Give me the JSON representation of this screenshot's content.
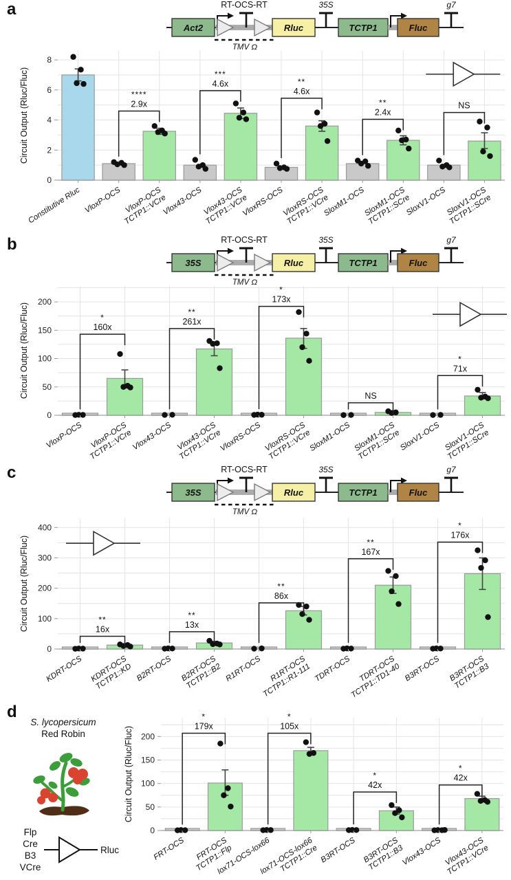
{
  "colors": {
    "bar_blue": "#A9D7EB",
    "bar_gray": "#C9C9C9",
    "bar_green": "#A5E8A6",
    "bar_border": "#9A9A9A",
    "grid": "#E4E4E4",
    "ink": "#111111",
    "construct_green": "#8CBA8C",
    "construct_yellow": "#F6EFA6",
    "construct_brown": "#B08445",
    "rt_triangle_fill": "#ECECEC",
    "rt_triangle_stroke": "#7A7A7A",
    "connector_gray": "#ABABAB",
    "plant_green": "#3B9E3B",
    "tomato_red": "#D8442F",
    "soil_brown": "#4F2D17"
  },
  "panels": {
    "a": {
      "label": "a",
      "construct": {
        "rt_label": "RT-OCS-RT",
        "promoter": "Act2",
        "reporter1": "Rluc",
        "terminator_mid": "35S",
        "promoter2": "TCTP1",
        "reporter2": "Fluc",
        "terminator_end": "g7",
        "below_label": "TMV Ω"
      }
    },
    "b": {
      "label": "b",
      "construct": {
        "rt_label": "RT-OCS-RT",
        "promoter": "35S",
        "reporter1": "Rluc",
        "terminator_mid": "35S",
        "promoter2": "TCTP1",
        "reporter2": "Fluc",
        "terminator_end": "g7",
        "below_label": "TMV Ω"
      }
    },
    "c": {
      "label": "c",
      "construct": {
        "rt_label": "RT-OCS-RT",
        "promoter": "35S",
        "reporter1": "Rluc",
        "terminator_mid": "35S",
        "promoter2": "TCTP1",
        "reporter2": "Fluc",
        "terminator_end": "g7",
        "below_label": "TMV Ω"
      }
    },
    "d": {
      "label": "d",
      "species_line1": "S. lycopersicum",
      "species_line2": "Red Robin",
      "legend": {
        "inputs": [
          "Flp",
          "Cre",
          "B3",
          "VCre"
        ],
        "output": "Rluc"
      }
    }
  },
  "chart_data": [
    {
      "panel": "a",
      "type": "bar",
      "ylabel": "Circuit Output (Rluc/Fluc)",
      "ylim": [
        0,
        8.6
      ],
      "yticks": [
        0,
        2,
        4,
        6,
        8
      ],
      "grid_step": 1,
      "icon": {
        "x_frac": 0.885,
        "y": 7.05
      },
      "categories": [
        [
          "Constitutive Rluc"
        ],
        [
          "VloxP-OCS"
        ],
        [
          "VloxP-OCS",
          "TCTP1::VCre"
        ],
        [
          "Vlox43-OCS"
        ],
        [
          "Vlox43-OCS",
          "TCTP1::VCre"
        ],
        [
          "VloxRS-OCS"
        ],
        [
          "VloxRS-OCS",
          "TCTP1::VCre"
        ],
        [
          "SloxM1-OCS"
        ],
        [
          "SloxM1-OCS",
          "TCTP1::SCre"
        ],
        [
          "SloxV1-OCS"
        ],
        [
          "SloxV1-OCS",
          "TCTP1::SCre"
        ]
      ],
      "values": [
        7.0,
        1.1,
        3.25,
        1.0,
        4.45,
        0.85,
        3.6,
        1.1,
        2.65,
        1.0,
        2.6
      ],
      "bar_colors": [
        "blue",
        "gray",
        "green",
        "gray",
        "green",
        "gray",
        "green",
        "gray",
        "green",
        "gray",
        "green"
      ],
      "points": [
        [
          8.2,
          7.35,
          6.45,
          6.4
        ],
        [
          1.2,
          1.15,
          1.05,
          1.0
        ],
        [
          3.6,
          3.3,
          3.2,
          3.1
        ],
        [
          1.35,
          1.0,
          0.9,
          0.75
        ],
        [
          5.1,
          4.5,
          4.15,
          4.05
        ],
        [
          1.1,
          0.85,
          0.8,
          0.75
        ],
        [
          4.5,
          3.75,
          3.6,
          2.6
        ],
        [
          1.3,
          1.25,
          1.1,
          0.95
        ],
        [
          3.3,
          2.7,
          2.65,
          2.1
        ],
        [
          1.3,
          1.0,
          0.9,
          0.85
        ],
        [
          3.9,
          3.5,
          1.9,
          1.6
        ]
      ],
      "errors": [
        [
          6.6,
          7.4
        ],
        null,
        [
          3.05,
          3.45
        ],
        null,
        [
          4.1,
          4.8
        ],
        null,
        [
          3.25,
          3.95
        ],
        null,
        [
          2.35,
          2.95
        ],
        null,
        [
          2.1,
          3.15
        ]
      ],
      "annotations": [
        {
          "from": 1,
          "to": 2,
          "y": 4.6,
          "label": "2.9x",
          "sig": "****"
        },
        {
          "from": 3,
          "to": 4,
          "y": 5.95,
          "label": "4.6x",
          "sig": "***"
        },
        {
          "from": 5,
          "to": 6,
          "y": 5.45,
          "label": "4.6x",
          "sig": "**"
        },
        {
          "from": 7,
          "to": 8,
          "y": 4.05,
          "label": "2.4x",
          "sig": "**"
        },
        {
          "from": 9,
          "to": 10,
          "y": 4.5,
          "label": "NS",
          "sig": ""
        }
      ]
    },
    {
      "panel": "b",
      "type": "bar",
      "ylabel": "Circuit Output (Rluc/Fluc)",
      "ylim": [
        0,
        228
      ],
      "yticks": [
        0,
        50,
        100,
        150,
        200
      ],
      "grid_step": 25,
      "icon": {
        "x_frac": 0.9,
        "y": 178
      },
      "categories": [
        [
          "VloxP-OCS"
        ],
        [
          "VloxP-OCS",
          "TCTP1::VCre"
        ],
        [
          "Vlox43-OCS"
        ],
        [
          "Vlox43-OCS",
          "TCTP1::VCre"
        ],
        [
          "VloxRS-OCS"
        ],
        [
          "VloxRS-OCS",
          "TCTP1::VCre"
        ],
        [
          "SloxM1-OCS"
        ],
        [
          "SloxM1-OCS",
          "TCTP1::SCre"
        ],
        [
          "SloxV1-OCS"
        ],
        [
          "SloxV1-OCS",
          "TCTP1::SCre"
        ]
      ],
      "values": [
        0.5,
        65,
        0.6,
        117,
        0.8,
        136,
        0.4,
        5,
        0.5,
        34
      ],
      "bar_colors": [
        "gray",
        "green",
        "gray",
        "green",
        "gray",
        "green",
        "gray",
        "green",
        "gray",
        "green"
      ],
      "points": [
        [
          0.4,
          0.6,
          0.8
        ],
        [
          108,
          52,
          50,
          49
        ],
        [
          0.5,
          0.8
        ],
        [
          131,
          127,
          126,
          83
        ],
        [
          0.6,
          0.9,
          1.1
        ],
        [
          182,
          144,
          120,
          96
        ],
        [
          0.3,
          0.5
        ],
        [
          7,
          5,
          4
        ],
        [
          0.4,
          0.6
        ],
        [
          45,
          33,
          31,
          30
        ]
      ],
      "errors": [
        null,
        [
          50,
          80
        ],
        null,
        [
          105,
          128
        ],
        null,
        [
          118,
          153
        ],
        null,
        [
          3,
          8
        ],
        null,
        [
          29,
          40
        ]
      ],
      "annotations": [
        {
          "from": 0,
          "to": 1,
          "y": 143,
          "label": "160x",
          "sig": "*"
        },
        {
          "from": 2,
          "to": 3,
          "y": 153,
          "label": "261x",
          "sig": "**"
        },
        {
          "from": 4,
          "to": 5,
          "y": 192,
          "label": "173x",
          "sig": "*"
        },
        {
          "from": 6,
          "to": 7,
          "y": 22,
          "label": "NS",
          "sig": ""
        },
        {
          "from": 8,
          "to": 9,
          "y": 70,
          "label": "71x",
          "sig": "*"
        }
      ]
    },
    {
      "panel": "c",
      "type": "bar",
      "ylabel": "Circuit Output (Rluc/Fluc)",
      "ylim": [
        0,
        430
      ],
      "yticks": [
        0,
        100,
        200,
        300,
        400
      ],
      "grid_step": 50,
      "icon": {
        "x_frac": 0.08,
        "y": 348
      },
      "categories": [
        [
          "KDRT-OCS"
        ],
        [
          "KDRT-OCS",
          "TCTP1::KD"
        ],
        [
          "B2RT-OCS"
        ],
        [
          "B2RT-OCS",
          "TCTP1::B2"
        ],
        [
          "R1RT-OCS"
        ],
        [
          "R1RT-OCS",
          "TCTP1::R1-111"
        ],
        [
          "TDRT-OCS"
        ],
        [
          "TDRT-OCS",
          "TCTP1::TD1-40"
        ],
        [
          "B3RT-OCS"
        ],
        [
          "B3RT-OCS",
          "TCTP1::B3"
        ]
      ],
      "values": [
        1.0,
        13,
        1.5,
        20,
        1.5,
        126,
        1.3,
        210,
        1.4,
        248
      ],
      "bar_colors": [
        "gray",
        "green",
        "gray",
        "green",
        "gray",
        "green",
        "gray",
        "green",
        "gray",
        "green"
      ],
      "points": [
        [
          0.8,
          1.2,
          1.6
        ],
        [
          15,
          13,
          10,
          8
        ],
        [
          1.0,
          1.5,
          2.0
        ],
        [
          27,
          18,
          16,
          15
        ],
        [
          1.0,
          2.0
        ],
        [
          145,
          140,
          115,
          96
        ],
        [
          1.0,
          1.5,
          2.0
        ],
        [
          257,
          240,
          190,
          148
        ],
        [
          1.0,
          1.5,
          2.0
        ],
        [
          325,
          292,
          267,
          105
        ]
      ],
      "errors": [
        null,
        [
          9,
          16
        ],
        null,
        [
          16,
          25
        ],
        null,
        [
          112,
          140
        ],
        null,
        [
          183,
          237
        ],
        null,
        [
          196,
          300
        ]
      ],
      "annotations": [
        {
          "from": 0,
          "to": 1,
          "y": 42,
          "label": "16x",
          "sig": "**"
        },
        {
          "from": 2,
          "to": 3,
          "y": 57,
          "label": "13x",
          "sig": "**"
        },
        {
          "from": 4,
          "to": 5,
          "y": 152,
          "label": "86x",
          "sig": "**"
        },
        {
          "from": 6,
          "to": 7,
          "y": 297,
          "label": "167x",
          "sig": "**"
        },
        {
          "from": 8,
          "to": 9,
          "y": 352,
          "label": "176x",
          "sig": "*"
        }
      ]
    },
    {
      "panel": "d",
      "type": "bar",
      "ylabel": "Circuit Output (Rluc/Fluc)",
      "ylim": [
        0,
        240
      ],
      "yticks": [
        0,
        50,
        100,
        150,
        200
      ],
      "grid_step": 25,
      "icon": null,
      "categories": [
        [
          "FRT-OCS"
        ],
        [
          "FRT-OCS",
          "TCTP1::Flp"
        ],
        [
          "lox71-OCS-lox66"
        ],
        [
          "lox71-OCS-lox66",
          "TCTP1::Cre"
        ],
        [
          "B3RT-OCS"
        ],
        [
          "B3RT-OCS",
          "TCTP1::B3"
        ],
        [
          "Vlox43-OCS"
        ],
        [
          "Vlox43-OCS",
          "TCTP1::VCre"
        ]
      ],
      "values": [
        0.6,
        101,
        0.9,
        170,
        1.0,
        42,
        0.7,
        68
      ],
      "bar_colors": [
        "gray",
        "green",
        "gray",
        "green",
        "gray",
        "green",
        "gray",
        "green"
      ],
      "points": [
        [
          0.5,
          0.7,
          0.9
        ],
        [
          185,
          90,
          75,
          51
        ],
        [
          0.7,
          0.9,
          1.1
        ],
        [
          188,
          165,
          163
        ],
        [
          0.8,
          1.0,
          1.2
        ],
        [
          54,
          43,
          37,
          28
        ],
        [
          0.5,
          0.7,
          0.9,
          1.1
        ],
        [
          78,
          65,
          63,
          61
        ]
      ],
      "errors": [
        null,
        [
          75,
          129
        ],
        null,
        [
          162,
          177
        ],
        null,
        [
          35,
          50
        ],
        null,
        [
          62,
          73
        ]
      ],
      "annotations": [
        {
          "from": 0,
          "to": 1,
          "y": 207,
          "label": "179x",
          "sig": "*"
        },
        {
          "from": 2,
          "to": 3,
          "y": 207,
          "label": "105x",
          "sig": "*"
        },
        {
          "from": 4,
          "to": 5,
          "y": 82,
          "label": "42x",
          "sig": "*"
        },
        {
          "from": 6,
          "to": 7,
          "y": 97,
          "label": "42x",
          "sig": "*"
        }
      ]
    }
  ]
}
